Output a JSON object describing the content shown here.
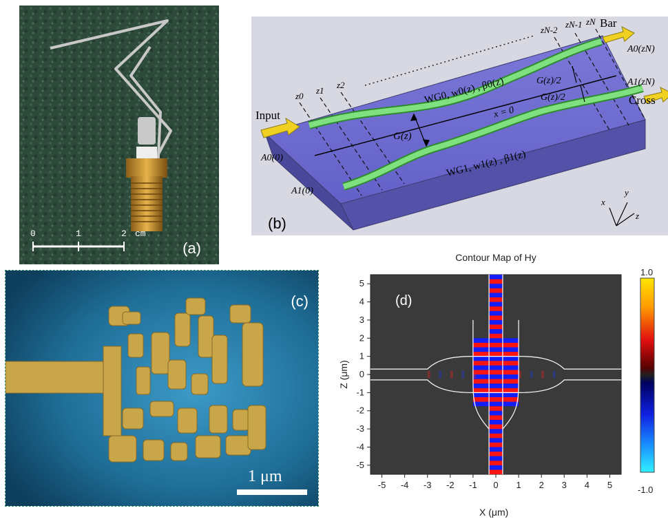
{
  "panel_a": {
    "label": "(a)",
    "scale_ticks": [
      "0",
      "1",
      "2"
    ],
    "scale_unit": "cm"
  },
  "panel_b": {
    "label": "(b)",
    "input_label": "Input",
    "bar_label": "Bar",
    "cross_label": "Cross",
    "a0_in": "A0(0)",
    "a1_in": "A1(0)",
    "a0_out": "A0(zN)",
    "a1_out": "A1(zN)",
    "wg0_label": "WG0, w0(z) , β0(z)",
    "wg1_label": "WG1, w1(z) , β1(z)",
    "center_axis": "x = 0",
    "gap_label": "G(z)",
    "half_gap_label": "G(z)/2",
    "z_labels_left": [
      "z0",
      "z1",
      "z2"
    ],
    "z_labels_right": [
      "zN-2",
      "zN-1",
      "zN"
    ],
    "axis_x": "x",
    "axis_y": "y",
    "axis_z": "z"
  },
  "panel_c": {
    "label": "(c)",
    "scale_text": "1 μm"
  },
  "panel_d": {
    "label": "(d)",
    "title": "Contour Map of Hy",
    "xlabel": "X (μm)",
    "ylabel": "Z (μm)",
    "colorbar_max": "1.0",
    "colorbar_min": "-1.0"
  },
  "chart_data": {
    "type": "heatmap",
    "title": "Contour Map of Hy",
    "xlabel": "X (μm)",
    "ylabel": "Z (μm)",
    "xlim": [
      -5.5,
      5.5
    ],
    "ylim": [
      -5.5,
      5.5
    ],
    "x_ticks": [
      -5,
      -4,
      -3,
      -2,
      -1,
      0,
      1,
      2,
      3,
      4,
      5
    ],
    "y_ticks": [
      -5,
      -4,
      -3,
      -2,
      -1,
      0,
      1,
      2,
      3,
      4,
      5
    ],
    "colorbar_range": [
      -1.0,
      1.0
    ],
    "waveguide_half_width": 0.3,
    "crossing_half_extent": 1.0,
    "taper_end": 3.0,
    "background_color": "#3a3a3a"
  }
}
